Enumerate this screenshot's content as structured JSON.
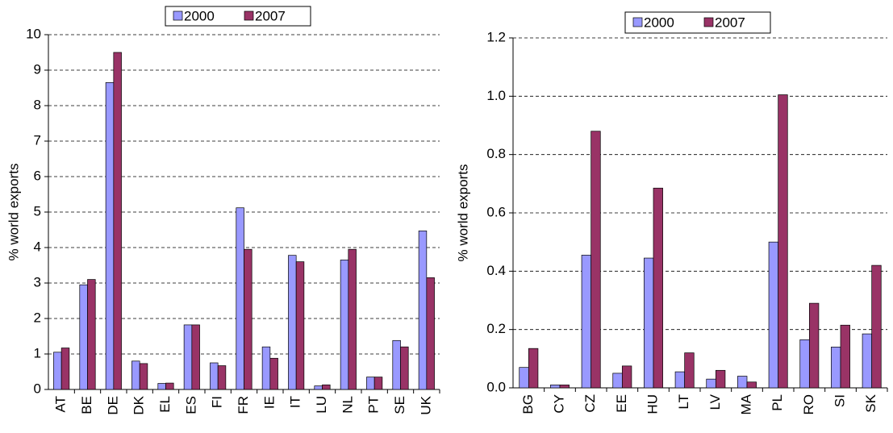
{
  "chart_data": [
    {
      "type": "bar",
      "y_label": "% world exports",
      "categories": [
        "AT",
        "BE",
        "DE",
        "DK",
        "EL",
        "ES",
        "FI",
        "FR",
        "IE",
        "IT",
        "LU",
        "NL",
        "PT",
        "SE",
        "UK"
      ],
      "series": [
        {
          "name": "2000",
          "color": "#9999ff",
          "values": [
            1.05,
            2.95,
            8.65,
            0.8,
            0.17,
            1.82,
            0.75,
            5.12,
            1.2,
            3.78,
            0.1,
            3.65,
            0.35,
            1.38,
            4.47
          ]
        },
        {
          "name": "2007",
          "color": "#993366",
          "values": [
            1.17,
            3.1,
            9.5,
            0.73,
            0.18,
            1.82,
            0.67,
            3.95,
            0.88,
            3.6,
            0.13,
            3.95,
            0.35,
            1.2,
            3.15
          ]
        }
      ],
      "ylim": [
        0,
        10
      ],
      "yticks": [
        0,
        1,
        2,
        3,
        4,
        5,
        6,
        7,
        8,
        9,
        10
      ],
      "grid": true,
      "legend": "top"
    },
    {
      "type": "bar",
      "y_label": "% world exports",
      "categories": [
        "BG",
        "CY",
        "CZ",
        "EE",
        "HU",
        "LT",
        "LV",
        "MA",
        "PL",
        "RO",
        "SI",
        "SK"
      ],
      "series": [
        {
          "name": "2000",
          "color": "#9999ff",
          "values": [
            0.07,
            0.01,
            0.455,
            0.05,
            0.445,
            0.055,
            0.03,
            0.04,
            0.5,
            0.165,
            0.14,
            0.185
          ]
        },
        {
          "name": "2007",
          "color": "#993366",
          "values": [
            0.135,
            0.01,
            0.88,
            0.075,
            0.685,
            0.12,
            0.06,
            0.02,
            1.005,
            0.29,
            0.215,
            0.42
          ]
        }
      ],
      "ylim": [
        0,
        1.2
      ],
      "yticks": [
        {
          "value": 0,
          "label": "0.0"
        },
        0.2,
        0.4,
        0.6,
        0.8,
        {
          "value": 1,
          "label": "1.0"
        },
        1.2
      ],
      "grid": true,
      "legend": "top"
    }
  ]
}
